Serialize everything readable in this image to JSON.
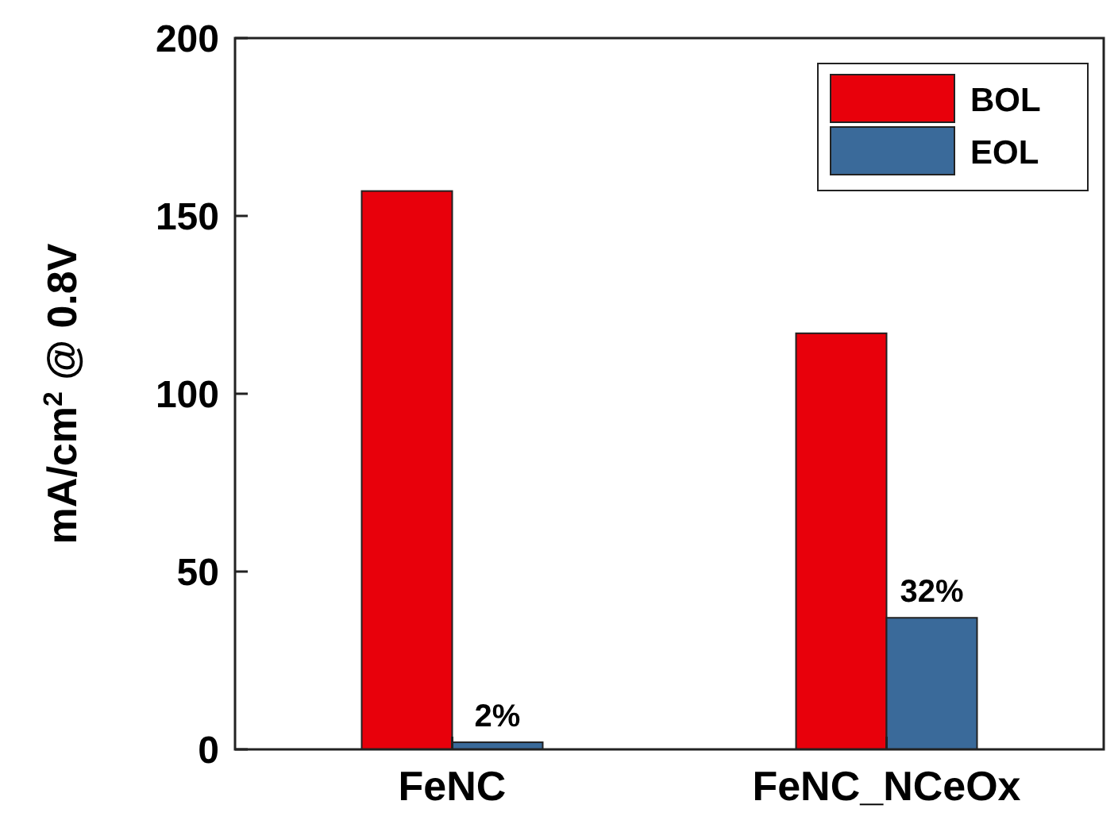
{
  "chart_data": {
    "type": "bar",
    "ylabel": "mA/cm$^{2}$ @ 0.8V",
    "categories": [
      "FeNC",
      "FeNC_NCeOx"
    ],
    "series": [
      {
        "name": "BOL",
        "color": "#e8000b",
        "values": [
          157,
          117
        ]
      },
      {
        "name": "EOL",
        "color": "#3a6a9a",
        "values": [
          2,
          37
        ]
      }
    ],
    "annotations": [
      {
        "text": "2%",
        "x": "FeNC",
        "y": 2
      },
      {
        "text": "32%",
        "x": "FeNC_NCeOx",
        "y": 37
      }
    ],
    "ylim": [
      0,
      200
    ],
    "yticks": [
      0,
      50,
      100,
      150,
      200
    ],
    "legend": "top right",
    "grid": false
  }
}
